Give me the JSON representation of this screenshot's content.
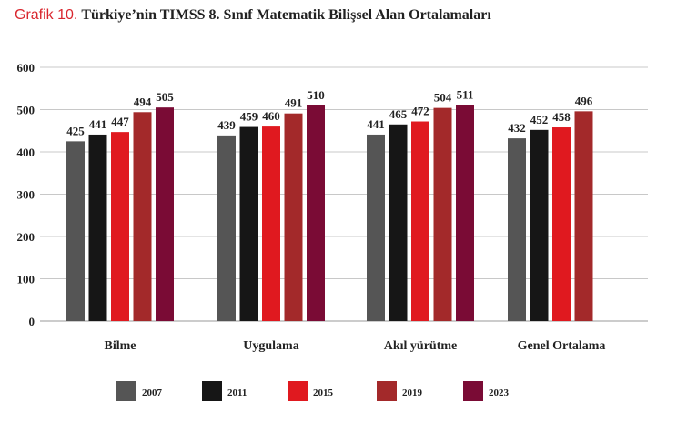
{
  "header": {
    "prefix": "Grafik 10.",
    "title": "Türkiye’nin TIMSS 8. Sınıf Matematik Bilişsel Alan Ortalamaları"
  },
  "chart_data": {
    "type": "bar",
    "categories": [
      "Bilme",
      "Uygulama",
      "Akıl yürütme",
      "Genel Ortalama"
    ],
    "series": [
      {
        "name": "2007",
        "color": "#555555",
        "values": [
          425,
          439,
          441,
          432
        ]
      },
      {
        "name": "2011",
        "color": "#161616",
        "values": [
          441,
          459,
          465,
          452
        ]
      },
      {
        "name": "2015",
        "color": "#e0191f",
        "values": [
          447,
          460,
          472,
          458
        ]
      },
      {
        "name": "2019",
        "color": "#a3292a",
        "values": [
          494,
          491,
          504,
          496
        ]
      },
      {
        "name": "2023",
        "color": "#7a0b35",
        "values": [
          505,
          510,
          511,
          null
        ]
      }
    ],
    "ylim": [
      0,
      600
    ],
    "yticks": [
      0,
      100,
      200,
      300,
      400,
      500,
      600
    ],
    "grid": true,
    "legend": "bottom"
  }
}
